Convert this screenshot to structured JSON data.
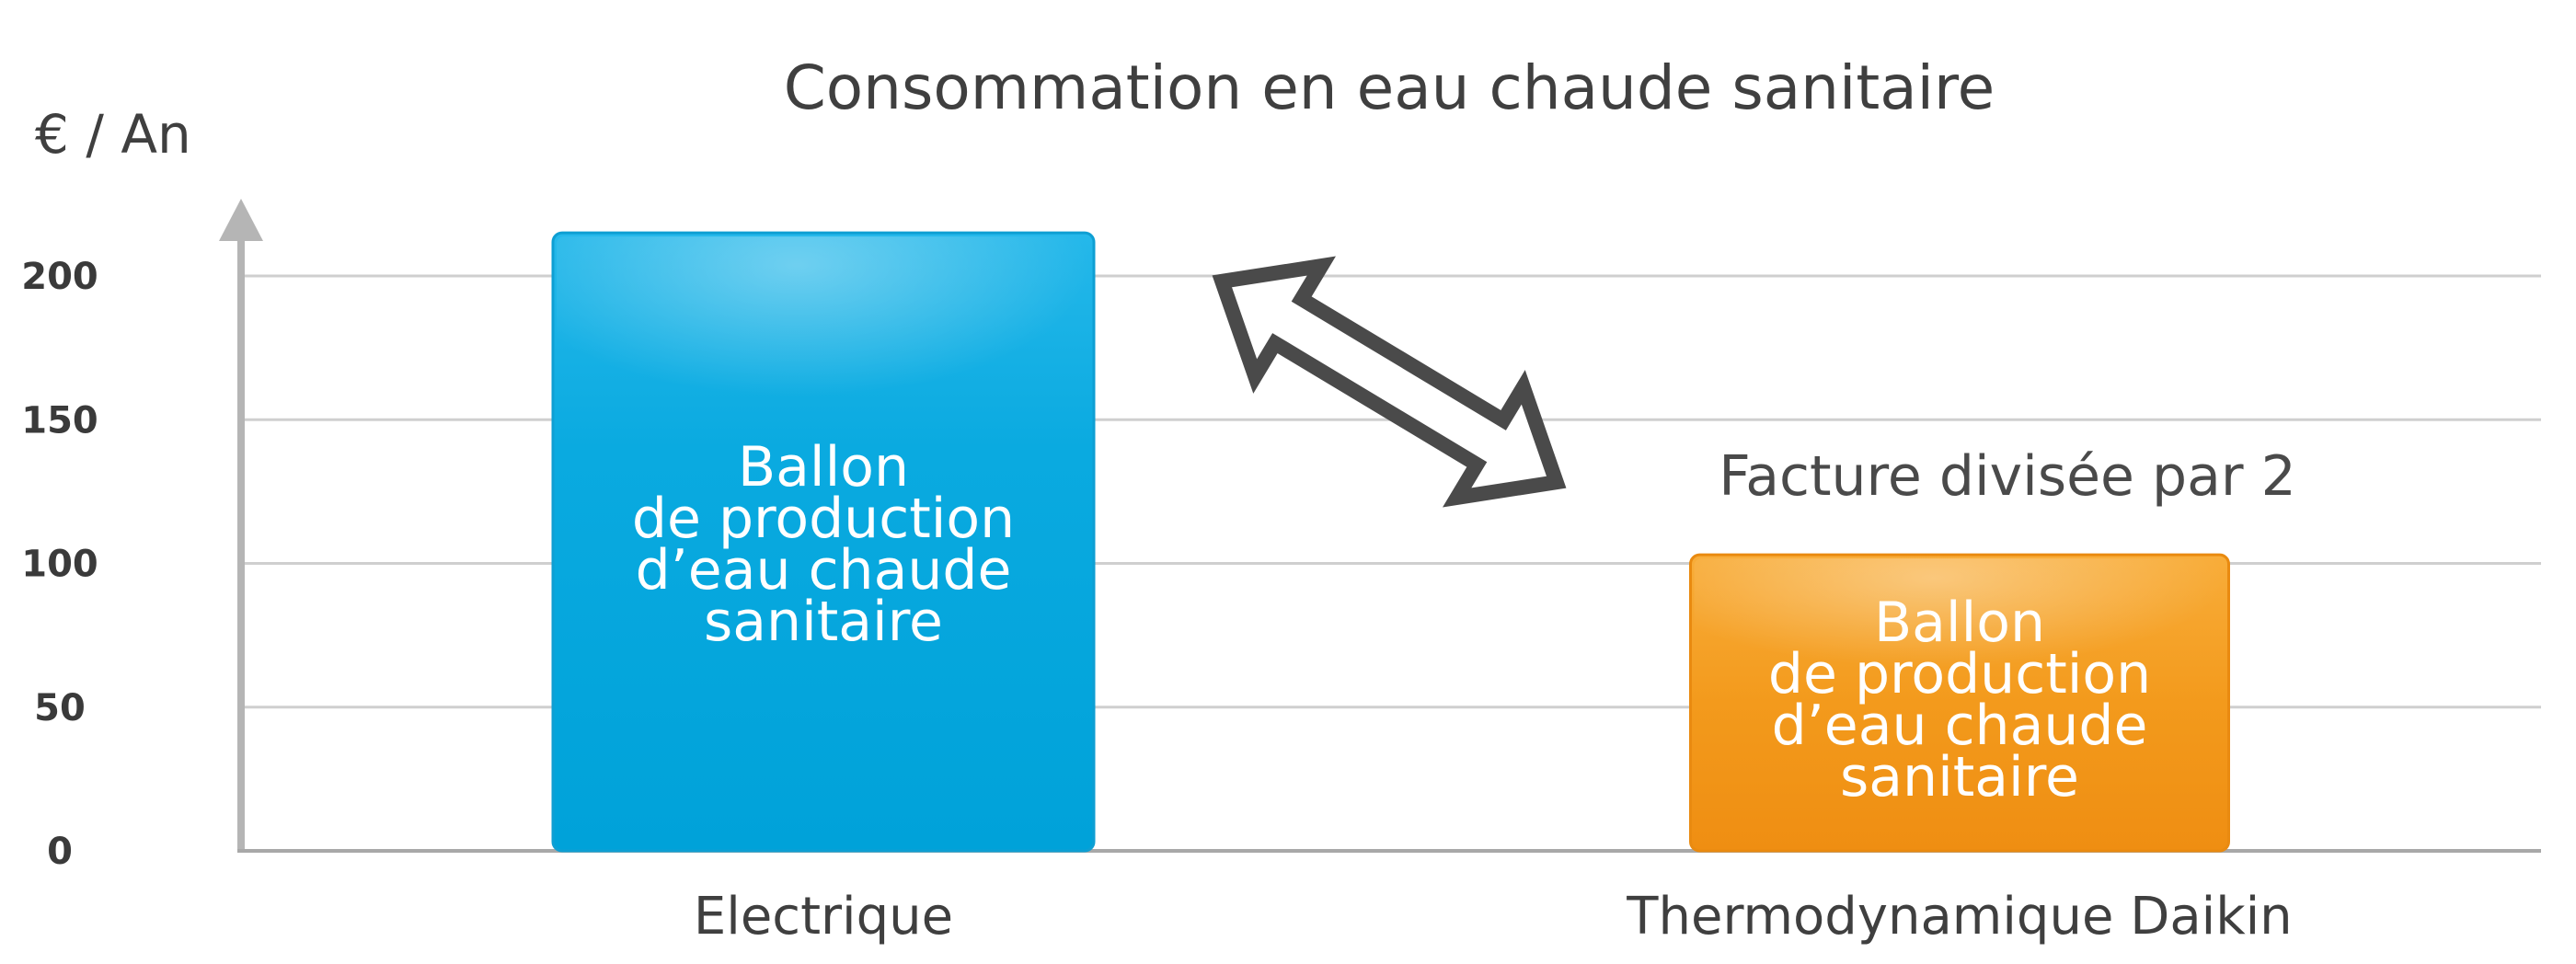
{
  "chart_data": {
    "type": "bar",
    "title": "Consommation en eau chaude sanitaire",
    "ylabel": "€ / An",
    "xlabel": "",
    "ylim": [
      0,
      200
    ],
    "yticks": [
      0,
      50,
      100,
      150,
      200
    ],
    "grid": true,
    "categories": [
      "Electrique",
      "Thermodynamique Daikin"
    ],
    "values": [
      215,
      103
    ],
    "bar_labels": [
      [
        "Ballon",
        "de production",
        "d’eau chaude",
        "sanitaire"
      ],
      [
        "Ballon",
        "de production",
        "d’eau chaude",
        "sanitaire"
      ]
    ],
    "colors": [
      "#00a6dc",
      "#f39a1c"
    ],
    "annotation": "Facture divisée par 2"
  }
}
